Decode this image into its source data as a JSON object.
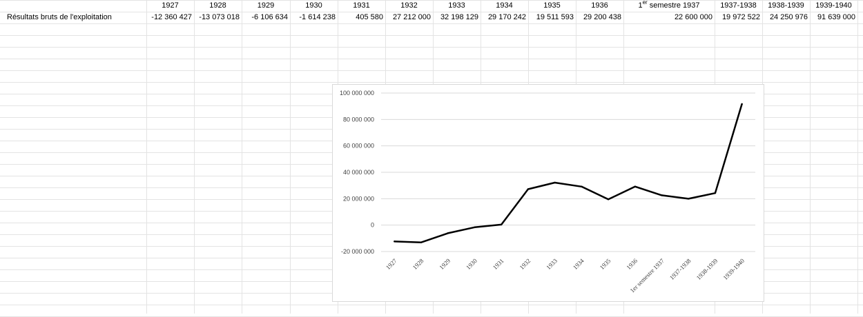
{
  "sheet": {
    "headers": [
      "1927",
      "1928",
      "1929",
      "1930",
      "1931",
      "1932",
      "1933",
      "1934",
      "1935",
      "1936",
      "1er semestre 1937",
      "1937-1938",
      "1938-1939",
      "1939-1940"
    ],
    "special_header": {
      "pre": "1",
      "sup": "er",
      "post": " semestre 1937"
    },
    "row_label": "Résultats bruts de l'exploitation",
    "row_values": [
      "-12 360 427",
      "-13 073 018",
      "-6 106 634",
      "-1 614 238",
      "405 580",
      "27 212 000",
      "32 198 129",
      "29 170 242",
      "19 511 593",
      "29 200 438",
      "22 600 000",
      "19 972 522",
      "24 250 976",
      "91 639 000"
    ]
  },
  "chart_data": {
    "type": "line",
    "title": "",
    "xlabel": "",
    "ylabel": "",
    "categories": [
      "1927",
      "1928",
      "1929",
      "1930",
      "1931",
      "1932",
      "1933",
      "1934",
      "1935",
      "1936",
      "1er semestre 1937",
      "1937-1938",
      "1938-1939",
      "1939-1940"
    ],
    "series": [
      {
        "values": [
          -12360427,
          -13073018,
          -6106634,
          -1614238,
          405580,
          27212000,
          32198129,
          29170242,
          19511593,
          29200438,
          22600000,
          19972522,
          24250976,
          91639000
        ],
        "color": "#000000"
      }
    ],
    "ylim": [
      -20000000,
      100000000
    ],
    "yticks": [
      100000000,
      80000000,
      60000000,
      40000000,
      20000000,
      0,
      -20000000
    ],
    "ytick_labels": [
      "100 000 000",
      "80 000 000",
      "60 000 000",
      "40 000 000",
      "20 000 000",
      "0",
      "-20 000 000"
    ],
    "grid": true,
    "legend": "none",
    "gridline_color": "#d9d9d9"
  }
}
